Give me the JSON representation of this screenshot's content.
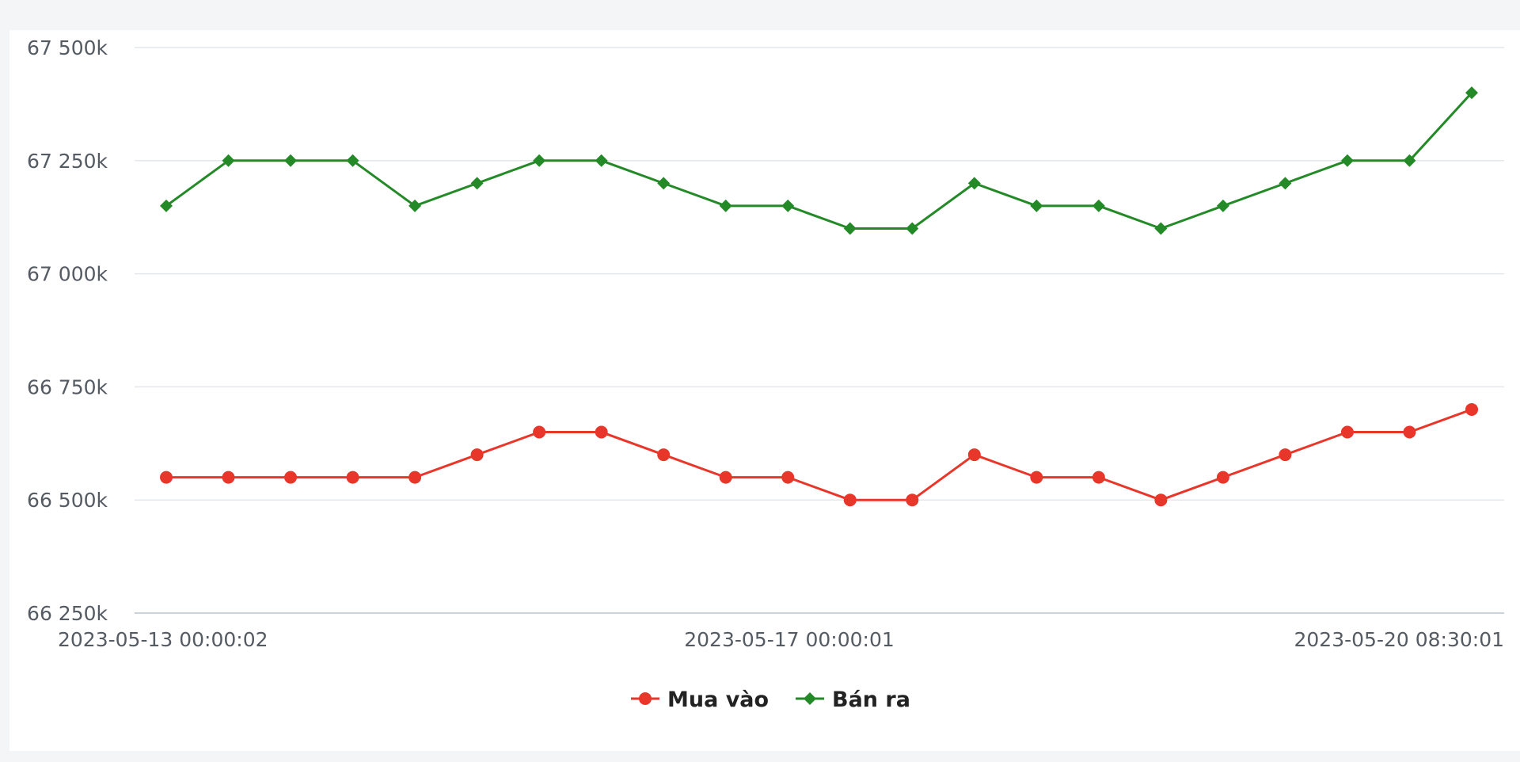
{
  "chart_data": {
    "type": "line",
    "x_tick_labels": [
      "2023-05-13 00:00:02",
      "2023-05-17 00:00:01",
      "2023-05-20 08:30:01"
    ],
    "y_tick_labels": [
      "67 500k",
      "67 250k",
      "67 000k",
      "66 750k",
      "66 500k",
      "66 250k"
    ],
    "ylim": [
      66250,
      67500
    ],
    "grid": true,
    "legend_position": "bottom-center",
    "series": [
      {
        "name": "Mua vào",
        "color": "#e8362a",
        "marker": "circle",
        "values": [
          66550,
          66550,
          66550,
          66550,
          66550,
          66600,
          66650,
          66650,
          66600,
          66550,
          66550,
          66500,
          66500,
          66600,
          66550,
          66550,
          66500,
          66550,
          66600,
          66650,
          66650,
          66700
        ]
      },
      {
        "name": "Bán ra",
        "color": "#248a28",
        "marker": "diamond",
        "values": [
          67150,
          67250,
          67250,
          67250,
          67150,
          67200,
          67250,
          67250,
          67200,
          67150,
          67150,
          67100,
          67100,
          67200,
          67150,
          67150,
          67100,
          67150,
          67200,
          67250,
          67250,
          67400
        ]
      }
    ]
  }
}
